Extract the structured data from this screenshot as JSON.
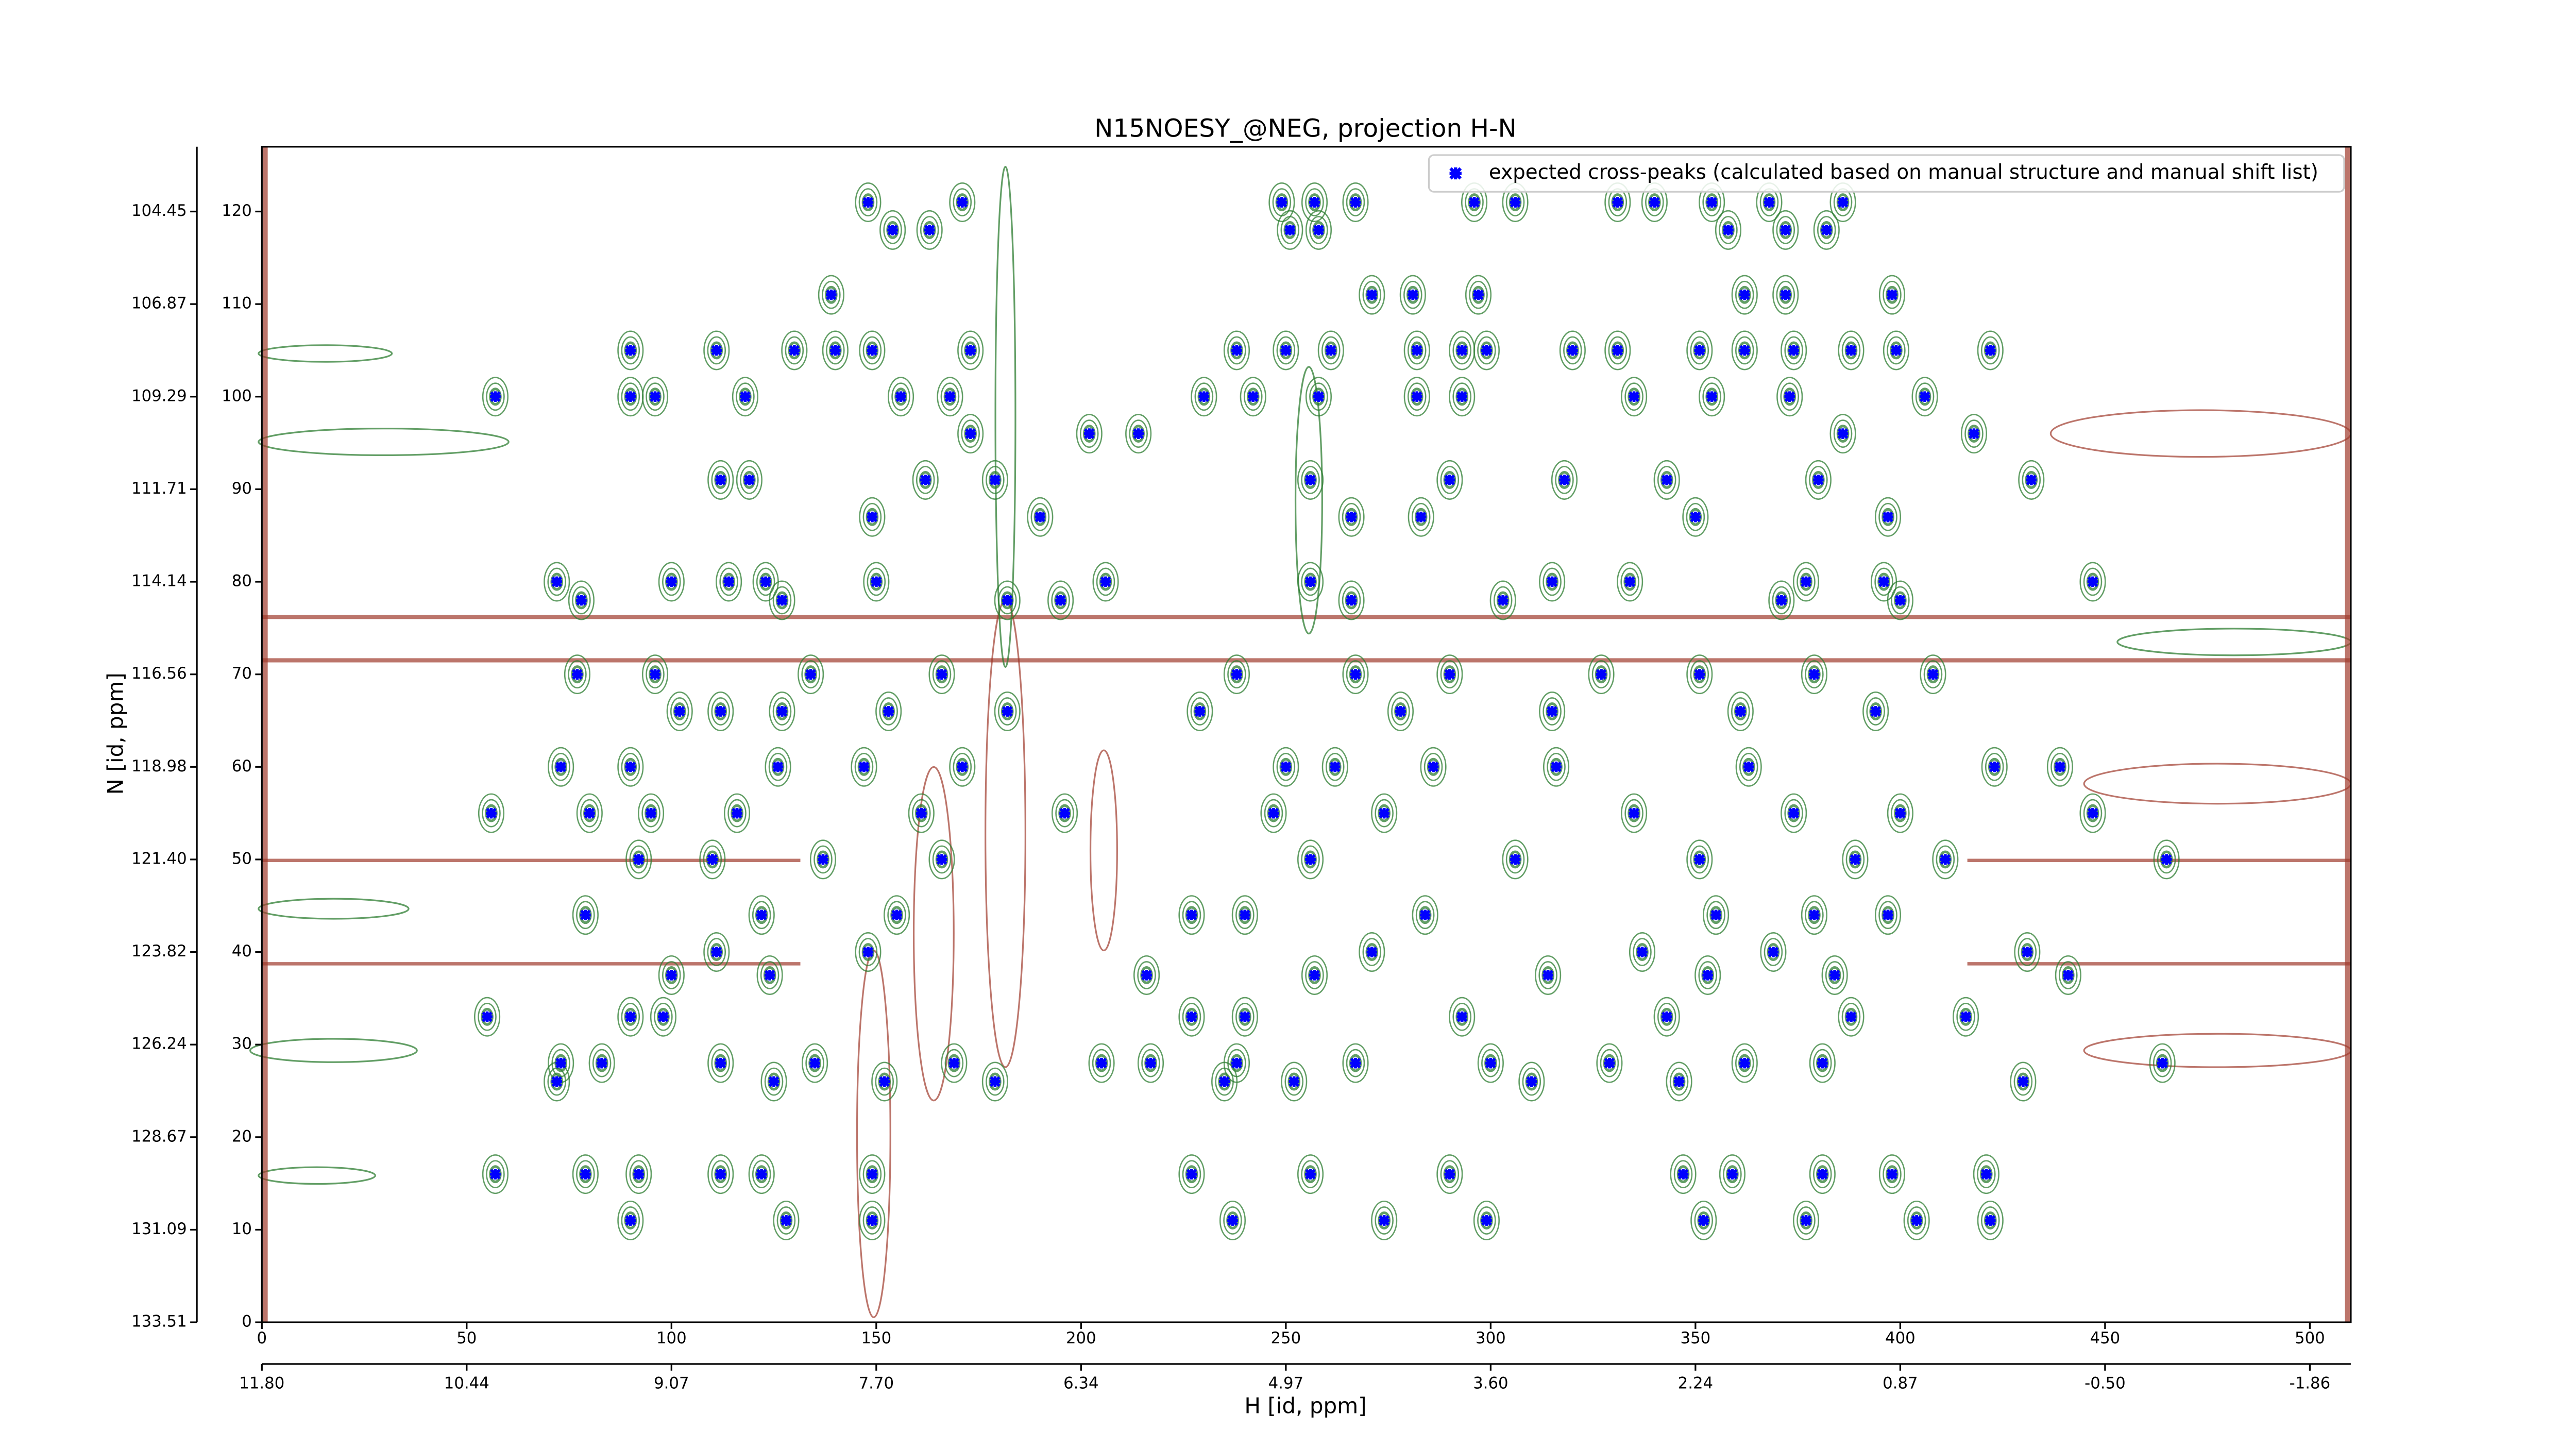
{
  "chart_data": {
    "type": "scatter",
    "title": "N15NOESY_@NEG, projection H-N",
    "xlabel": "H [id, ppm]",
    "ylabel": "N [id, ppm]",
    "legend": "upper right",
    "series": [
      {
        "name": "expected cross-peaks (calculated based on manual structure and manual shift list)",
        "color": "#0000ff",
        "x": [
          148,
          171,
          249,
          257,
          267,
          296,
          306,
          331,
          340,
          354,
          368,
          386,
          154,
          163,
          251,
          258,
          358,
          372,
          382,
          139,
          271,
          281,
          297,
          362,
          372,
          398,
          90,
          111,
          130,
          140,
          149,
          173,
          238,
          250,
          261,
          282,
          293,
          299,
          320,
          331,
          351,
          362,
          374,
          388,
          399,
          422,
          57,
          90,
          96,
          118,
          156,
          168,
          230,
          242,
          258,
          282,
          293,
          335,
          354,
          373,
          406,
          173,
          202,
          214,
          386,
          418,
          112,
          119,
          162,
          179,
          256,
          290,
          318,
          343,
          380,
          432,
          149,
          190,
          266,
          283,
          350,
          397,
          72,
          100,
          114,
          123,
          150,
          206,
          256,
          315,
          334,
          377,
          396,
          447,
          78,
          127,
          182,
          195,
          266,
          303,
          371,
          400,
          77,
          96,
          134,
          166,
          238,
          267,
          290,
          327,
          351,
          379,
          408,
          102,
          112,
          127,
          153,
          182,
          229,
          278,
          315,
          361,
          394,
          73,
          90,
          126,
          147,
          171,
          250,
          262,
          286,
          316,
          363,
          423,
          439,
          56,
          80,
          95,
          116,
          161,
          196,
          247,
          274,
          335,
          374,
          400,
          447,
          92,
          110,
          137,
          166,
          256,
          306,
          351,
          389,
          411,
          465,
          79,
          122,
          155,
          227,
          240,
          284,
          355,
          379,
          397,
          111,
          148,
          271,
          337,
          369,
          431,
          100,
          124,
          216,
          257,
          314,
          353,
          384,
          441,
          55,
          90,
          98,
          227,
          240,
          293,
          343,
          388,
          416,
          73,
          83,
          112,
          135,
          169,
          205,
          217,
          238,
          267,
          300,
          329,
          362,
          381,
          464,
          72,
          125,
          152,
          179,
          235,
          252,
          310,
          346,
          430,
          57,
          79,
          92,
          112,
          122,
          149,
          227,
          256,
          290,
          347,
          359,
          381,
          398,
          421,
          90,
          128,
          149,
          237,
          274,
          299,
          352,
          377,
          404,
          422
        ],
        "values": [
          121,
          121,
          121,
          121,
          121,
          121,
          121,
          121,
          121,
          121,
          121,
          121,
          118,
          118,
          118,
          118,
          118,
          118,
          118,
          111,
          111,
          111,
          111,
          111,
          111,
          111,
          105,
          105,
          105,
          105,
          105,
          105,
          105,
          105,
          105,
          105,
          105,
          105,
          105,
          105,
          105,
          105,
          105,
          105,
          105,
          105,
          100,
          100,
          100,
          100,
          100,
          100,
          100,
          100,
          100,
          100,
          100,
          100,
          100,
          100,
          100,
          96,
          96,
          96,
          96,
          96,
          91,
          91,
          91,
          91,
          91,
          91,
          91,
          91,
          91,
          91,
          87,
          87,
          87,
          87,
          87,
          87,
          80,
          80,
          80,
          80,
          80,
          80,
          80,
          80,
          80,
          80,
          80,
          80,
          78,
          78,
          78,
          78,
          78,
          78,
          78,
          78,
          70,
          70,
          70,
          70,
          70,
          70,
          70,
          70,
          70,
          70,
          70,
          66,
          66,
          66,
          66,
          66,
          66,
          66,
          66,
          66,
          66,
          60,
          60,
          60,
          60,
          60,
          60,
          60,
          60,
          60,
          60,
          60,
          60,
          55,
          55,
          55,
          55,
          55,
          55,
          55,
          55,
          55,
          55,
          55,
          55,
          50,
          50,
          50,
          50,
          50,
          50,
          50,
          50,
          50,
          50,
          44,
          44,
          44,
          44,
          44,
          44,
          44,
          44,
          44,
          40,
          40,
          40,
          40,
          40,
          40,
          37.5,
          37.5,
          37.5,
          37.5,
          37.5,
          37.5,
          37.5,
          37.5,
          33,
          33,
          33,
          33,
          33,
          33,
          33,
          33,
          33,
          28,
          28,
          28,
          28,
          28,
          28,
          28,
          28,
          28,
          28,
          28,
          28,
          28,
          28,
          26,
          26,
          26,
          26,
          26,
          26,
          26,
          26,
          26,
          16,
          16,
          16,
          16,
          16,
          16,
          16,
          16,
          16,
          16,
          16,
          16,
          16,
          16,
          11,
          11,
          11,
          11,
          11,
          11,
          11,
          11,
          11,
          11
        ]
      }
    ],
    "xlim": [
      0,
      510
    ],
    "ylim": [
      0,
      127
    ],
    "xticks": [
      0,
      50,
      100,
      150,
      200,
      250,
      300,
      350,
      400,
      450,
      500
    ],
    "x2ticks": [
      {
        "value": 0,
        "label": "11.80"
      },
      {
        "value": 50,
        "label": "10.44"
      },
      {
        "value": 100,
        "label": "9.07"
      },
      {
        "value": 150,
        "label": "7.70"
      },
      {
        "value": 200,
        "label": "6.34"
      },
      {
        "value": 250,
        "label": "4.97"
      },
      {
        "value": 300,
        "label": "3.60"
      },
      {
        "value": 350,
        "label": "2.24"
      },
      {
        "value": 400,
        "label": "0.87"
      },
      {
        "value": 450,
        "label": "-0.50"
      },
      {
        "value": 500,
        "label": "-1.86"
      }
    ],
    "yticks": [
      0,
      10,
      20,
      30,
      40,
      50,
      60,
      70,
      80,
      90,
      100,
      110,
      120
    ],
    "y2ticks": [
      {
        "value": 0,
        "label": "133.51"
      },
      {
        "value": 10,
        "label": "131.09"
      },
      {
        "value": 20,
        "label": "128.67"
      },
      {
        "value": 30,
        "label": "126.24"
      },
      {
        "value": 40,
        "label": "123.82"
      },
      {
        "value": 50,
        "label": "121.40"
      },
      {
        "value": 60,
        "label": "118.98"
      },
      {
        "value": 70,
        "label": "116.56"
      },
      {
        "value": 80,
        "label": "114.14"
      },
      {
        "value": 90,
        "label": "111.71"
      },
      {
        "value": 100,
        "label": "109.29"
      },
      {
        "value": 110,
        "label": "106.87"
      },
      {
        "value": 120,
        "label": "104.45"
      }
    ]
  }
}
